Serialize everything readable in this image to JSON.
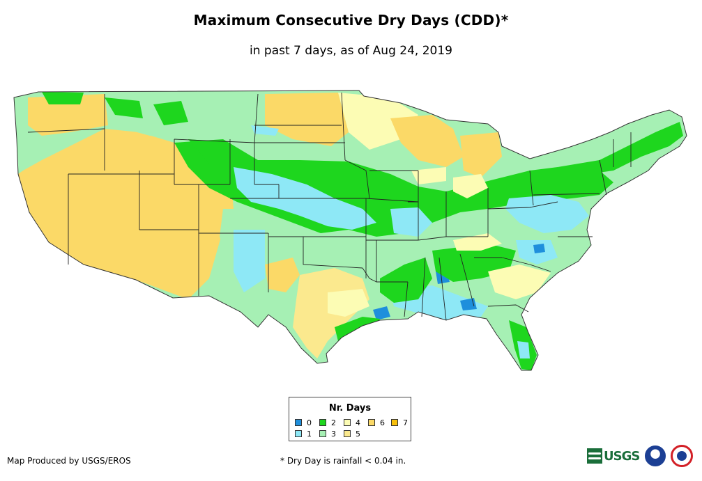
{
  "header": {
    "title": "Maximum Consecutive Dry Days (CDD)*",
    "subtitle": "in past 7 days, as of Aug 24, 2019"
  },
  "legend": {
    "title": "Nr. Days",
    "items": [
      {
        "label": "0",
        "color": "#1e8fdc"
      },
      {
        "label": "1",
        "color": "#8ee8f6"
      },
      {
        "label": "2",
        "color": "#1ed61e"
      },
      {
        "label": "3",
        "color": "#a6f0b4"
      },
      {
        "label": "4",
        "color": "#fcfcb4"
      },
      {
        "label": "5",
        "color": "#fbe98e"
      },
      {
        "label": "6",
        "color": "#fbd967"
      },
      {
        "label": "7",
        "color": "#f7bf0a"
      }
    ]
  },
  "footer": {
    "credit": "Map Produced by USGS/EROS",
    "note": "* Dry Day is rainfall < 0.04 in."
  },
  "logos": {
    "usgs": "USGS"
  },
  "icons": [
    "usgs-logo-icon",
    "noaa-logo-icon",
    "nws-logo-icon"
  ]
}
